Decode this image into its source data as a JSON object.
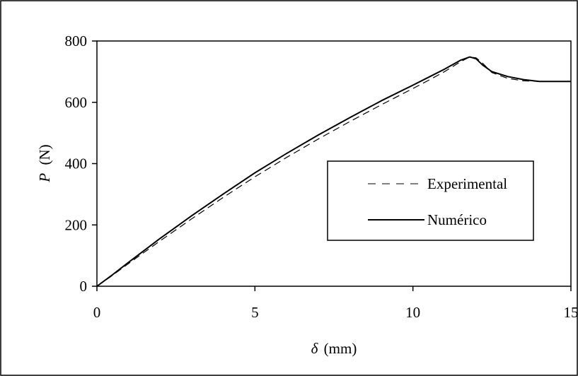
{
  "chart_data": {
    "type": "line",
    "title": "",
    "xlabel": {
      "symbol": "δ",
      "unit": "(mm)"
    },
    "ylabel": {
      "symbol": "P",
      "unit": "(N)"
    },
    "xlim": [
      0,
      15
    ],
    "ylim": [
      0,
      800
    ],
    "xticks": [
      "0",
      "5",
      "10",
      "15"
    ],
    "yticks": [
      "0",
      "200",
      "400",
      "600",
      "800"
    ],
    "grid": false,
    "legend_position": "right",
    "series": [
      {
        "name": "Experimental",
        "style": "dashed",
        "color": "#000000",
        "x": [
          0,
          0.5,
          1,
          2,
          3,
          4,
          5,
          6,
          7,
          8,
          9,
          10,
          10.5,
          11,
          11.5,
          11.8,
          12.0,
          12.2,
          12.5,
          13.0,
          13.5,
          14.0,
          14.5,
          15
        ],
        "y": [
          0,
          36,
          74,
          148,
          220,
          290,
          357,
          420,
          480,
          537,
          592,
          645,
          672,
          700,
          732,
          748,
          745,
          728,
          697,
          678,
          670,
          668,
          668,
          668
        ]
      },
      {
        "name": "Numérico",
        "style": "solid",
        "color": "#000000",
        "x": [
          0,
          0.5,
          1,
          2,
          3,
          4,
          5,
          6,
          7,
          8,
          9,
          10,
          10.5,
          11,
          11.5,
          11.8,
          12.0,
          12.2,
          12.5,
          13.0,
          13.5,
          14.0,
          14.5,
          15
        ],
        "y": [
          0,
          38,
          78,
          156,
          230,
          301,
          370,
          433,
          493,
          550,
          605,
          656,
          682,
          708,
          737,
          748,
          742,
          722,
          700,
          684,
          674,
          668,
          668,
          668
        ]
      }
    ]
  }
}
